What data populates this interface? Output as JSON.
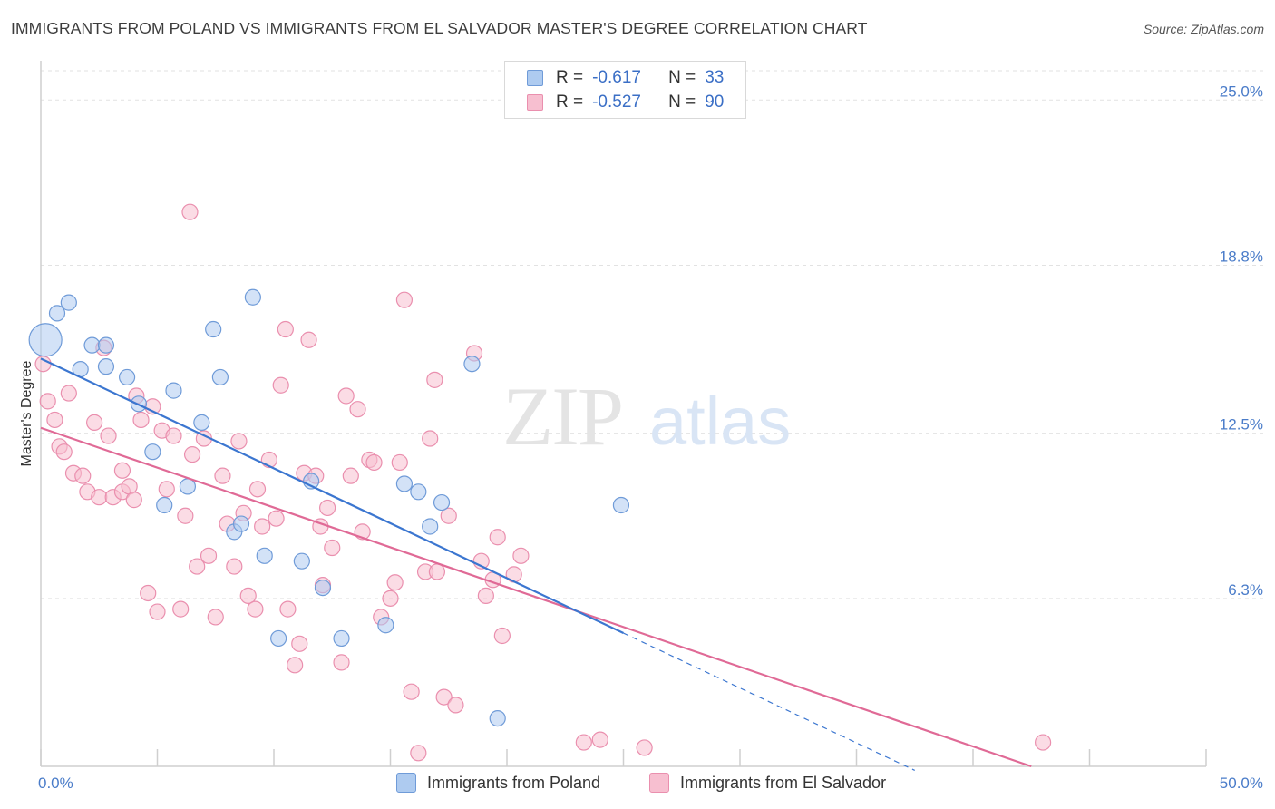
{
  "title": "IMMIGRANTS FROM POLAND VS IMMIGRANTS FROM EL SALVADOR MASTER'S DEGREE CORRELATION CHART",
  "source": "Source: ZipAtlas.com",
  "watermark": {
    "zip": "ZIP",
    "atlas": "atlas"
  },
  "colors": {
    "poland_fill": "#aecbf0",
    "poland_stroke": "#6f9bd8",
    "poland_line": "#3b76d0",
    "elsalvador_fill": "#f7bfd0",
    "elsalvador_stroke": "#ea8fae",
    "elsalvador_line": "#e06a96",
    "tick_text": "#4a7cc9"
  },
  "legend": {
    "rows": [
      {
        "r_label": "R =",
        "r_value": "-0.617",
        "n_label": "N =",
        "n_value": "33"
      },
      {
        "r_label": "R =",
        "r_value": "-0.527",
        "n_label": "N =",
        "n_value": "90"
      }
    ]
  },
  "bottom_legend": [
    "Immigrants from Poland",
    "Immigrants from El Salvador"
  ],
  "chart_data": {
    "type": "scatter",
    "xlabel": "",
    "ylabel": "Master's Degree",
    "xlim": [
      0,
      50
    ],
    "ylim": [
      0,
      26.2
    ],
    "x_tick_labels": [
      {
        "value": 0,
        "label": "0.0%"
      },
      {
        "value": 50,
        "label": "50.0%"
      }
    ],
    "y_ticks": [
      {
        "value": 6.3,
        "label": "6.3%"
      },
      {
        "value": 12.5,
        "label": "12.5%"
      },
      {
        "value": 18.8,
        "label": "18.8%"
      },
      {
        "value": 25.0,
        "label": "25.0%"
      }
    ],
    "x_minor_ticks": [
      0,
      5,
      10,
      15,
      20,
      25,
      30,
      35,
      40,
      45,
      50
    ],
    "grid": true,
    "series": [
      {
        "name": "Immigrants from Poland",
        "points": [
          [
            0.2,
            16.0
          ],
          [
            0.7,
            17.0
          ],
          [
            1.2,
            17.4
          ],
          [
            1.7,
            14.9
          ],
          [
            2.2,
            15.8
          ],
          [
            2.8,
            15.8
          ],
          [
            2.8,
            15.0
          ],
          [
            3.7,
            14.6
          ],
          [
            4.2,
            13.6
          ],
          [
            4.8,
            11.8
          ],
          [
            5.3,
            9.8
          ],
          [
            5.7,
            14.1
          ],
          [
            6.3,
            10.5
          ],
          [
            6.9,
            12.9
          ],
          [
            7.4,
            16.4
          ],
          [
            7.7,
            14.6
          ],
          [
            8.3,
            8.8
          ],
          [
            8.6,
            9.1
          ],
          [
            9.1,
            17.6
          ],
          [
            9.6,
            7.9
          ],
          [
            10.2,
            4.8
          ],
          [
            11.2,
            7.7
          ],
          [
            11.6,
            10.7
          ],
          [
            12.1,
            6.7
          ],
          [
            12.9,
            4.8
          ],
          [
            14.8,
            5.3
          ],
          [
            15.6,
            10.6
          ],
          [
            16.2,
            10.3
          ],
          [
            16.7,
            9.0
          ],
          [
            17.2,
            9.9
          ],
          [
            18.5,
            15.1
          ],
          [
            19.6,
            1.8
          ],
          [
            24.9,
            9.8
          ]
        ]
      },
      {
        "name": "Immigrants from El Salvador",
        "points": [
          [
            0.1,
            15.1
          ],
          [
            0.3,
            13.7
          ],
          [
            0.6,
            13.0
          ],
          [
            0.8,
            12.0
          ],
          [
            1.0,
            11.8
          ],
          [
            1.2,
            14.0
          ],
          [
            1.4,
            11.0
          ],
          [
            1.8,
            10.9
          ],
          [
            2.0,
            10.3
          ],
          [
            2.3,
            12.9
          ],
          [
            2.5,
            10.1
          ],
          [
            2.7,
            15.7
          ],
          [
            2.9,
            12.4
          ],
          [
            3.1,
            10.1
          ],
          [
            3.5,
            10.3
          ],
          [
            3.5,
            11.1
          ],
          [
            3.8,
            10.5
          ],
          [
            4.0,
            10.0
          ],
          [
            4.1,
            13.9
          ],
          [
            4.3,
            13.0
          ],
          [
            4.6,
            6.5
          ],
          [
            4.8,
            13.5
          ],
          [
            5.0,
            5.8
          ],
          [
            5.2,
            12.6
          ],
          [
            5.4,
            10.4
          ],
          [
            5.7,
            12.4
          ],
          [
            6.0,
            5.9
          ],
          [
            6.2,
            9.4
          ],
          [
            6.4,
            20.8
          ],
          [
            6.5,
            11.7
          ],
          [
            6.7,
            7.5
          ],
          [
            7.0,
            12.3
          ],
          [
            7.2,
            7.9
          ],
          [
            7.5,
            5.6
          ],
          [
            7.8,
            10.9
          ],
          [
            8.0,
            9.1
          ],
          [
            8.3,
            7.5
          ],
          [
            8.5,
            12.2
          ],
          [
            8.7,
            9.5
          ],
          [
            8.9,
            6.4
          ],
          [
            9.2,
            5.9
          ],
          [
            9.3,
            10.4
          ],
          [
            9.5,
            9.0
          ],
          [
            9.8,
            11.5
          ],
          [
            10.1,
            9.3
          ],
          [
            10.3,
            14.3
          ],
          [
            10.5,
            16.4
          ],
          [
            10.6,
            5.9
          ],
          [
            10.9,
            3.8
          ],
          [
            11.1,
            4.6
          ],
          [
            11.3,
            11.0
          ],
          [
            11.5,
            16.0
          ],
          [
            11.8,
            10.9
          ],
          [
            12.0,
            9.0
          ],
          [
            12.1,
            6.8
          ],
          [
            12.3,
            9.7
          ],
          [
            12.5,
            8.2
          ],
          [
            12.9,
            3.9
          ],
          [
            13.1,
            13.9
          ],
          [
            13.3,
            10.9
          ],
          [
            13.6,
            13.4
          ],
          [
            13.8,
            8.8
          ],
          [
            14.1,
            11.5
          ],
          [
            14.3,
            11.4
          ],
          [
            14.6,
            5.6
          ],
          [
            15.0,
            6.3
          ],
          [
            15.2,
            6.9
          ],
          [
            15.4,
            11.4
          ],
          [
            15.6,
            17.5
          ],
          [
            15.9,
            2.8
          ],
          [
            16.2,
            0.5
          ],
          [
            16.5,
            7.3
          ],
          [
            16.7,
            12.3
          ],
          [
            16.9,
            14.5
          ],
          [
            17.3,
            2.6
          ],
          [
            17.5,
            9.4
          ],
          [
            17.8,
            2.3
          ],
          [
            18.6,
            15.5
          ],
          [
            18.9,
            7.7
          ],
          [
            19.1,
            6.4
          ],
          [
            19.4,
            7.0
          ],
          [
            19.6,
            8.6
          ],
          [
            19.8,
            4.9
          ],
          [
            20.3,
            7.2
          ],
          [
            20.6,
            7.9
          ],
          [
            23.3,
            0.9
          ],
          [
            24.0,
            1.0
          ],
          [
            25.9,
            0.7
          ],
          [
            43.0,
            0.9
          ],
          [
            17.0,
            7.3
          ]
        ]
      }
    ],
    "trend_lines": [
      {
        "series": "Immigrants from Poland",
        "x0": 0,
        "y0": 15.3,
        "x1": 25.0,
        "y1": 5.0,
        "dashed_to_x": 37.5
      },
      {
        "series": "Immigrants from El Salvador",
        "x0": 0,
        "y0": 12.7,
        "x1": 42.5,
        "y1": 0
      }
    ]
  }
}
